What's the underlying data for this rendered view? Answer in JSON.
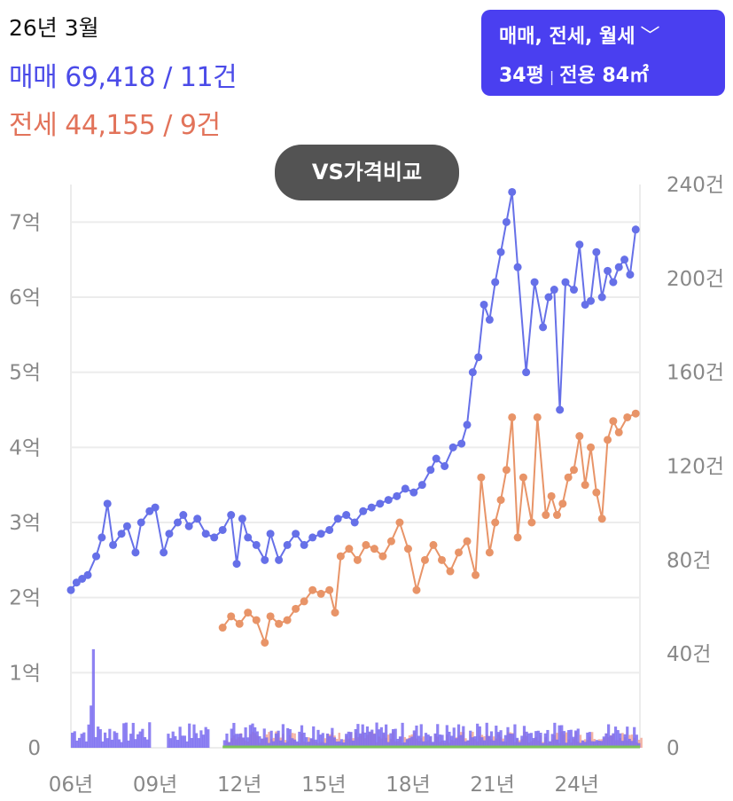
{
  "header": {
    "date": "26년 3월",
    "sale": "매매 69,418 / 11건",
    "jeonse": "전세 44,155 / 9건"
  },
  "filter": {
    "types": "매매, 전세, 월세",
    "size_pyeong": "34평",
    "separator": "|",
    "size_exclusive": "전용 84㎡"
  },
  "vs_button": "VS가격비교",
  "colors": {
    "sale": "#6670e8",
    "jeonse": "#e89468",
    "grid": "#ececec",
    "button": "#4a3ff0"
  },
  "chart_data": {
    "type": "line",
    "y_left": {
      "ticks": [
        "0",
        "1억",
        "2억",
        "3억",
        "4억",
        "5억",
        "6억",
        "7억"
      ],
      "range": [
        0,
        7.5
      ]
    },
    "y_right": {
      "ticks": [
        "0",
        "40건",
        "80건",
        "120건",
        "160건",
        "200건",
        "240건"
      ],
      "range": [
        0,
        240
      ]
    },
    "x_ticks": [
      "06년",
      "09년",
      "12년",
      "15년",
      "18년",
      "21년",
      "24년"
    ],
    "x_range": [
      2006.0,
      2026.25
    ],
    "grid": true,
    "series": [
      {
        "name": "매매",
        "points": [
          [
            2006.0,
            2.1
          ],
          [
            2006.2,
            2.2
          ],
          [
            2006.4,
            2.25
          ],
          [
            2006.6,
            2.3
          ],
          [
            2006.9,
            2.55
          ],
          [
            2007.1,
            2.8
          ],
          [
            2007.3,
            3.25
          ],
          [
            2007.5,
            2.7
          ],
          [
            2007.8,
            2.85
          ],
          [
            2008.0,
            2.95
          ],
          [
            2008.3,
            2.6
          ],
          [
            2008.5,
            3.0
          ],
          [
            2008.8,
            3.15
          ],
          [
            2009.0,
            3.2
          ],
          [
            2009.3,
            2.6
          ],
          [
            2009.5,
            2.85
          ],
          [
            2009.8,
            3.0
          ],
          [
            2010.0,
            3.1
          ],
          [
            2010.2,
            2.95
          ],
          [
            2010.5,
            3.05
          ],
          [
            2010.8,
            2.85
          ],
          [
            2011.1,
            2.8
          ],
          [
            2011.4,
            2.9
          ],
          [
            2011.7,
            3.1
          ],
          [
            2011.9,
            2.45
          ],
          [
            2012.1,
            3.05
          ],
          [
            2012.3,
            2.8
          ],
          [
            2012.6,
            2.7
          ],
          [
            2012.9,
            2.5
          ],
          [
            2013.1,
            2.85
          ],
          [
            2013.4,
            2.5
          ],
          [
            2013.7,
            2.7
          ],
          [
            2014.0,
            2.85
          ],
          [
            2014.3,
            2.7
          ],
          [
            2014.6,
            2.8
          ],
          [
            2014.9,
            2.85
          ],
          [
            2015.2,
            2.9
          ],
          [
            2015.5,
            3.05
          ],
          [
            2015.8,
            3.1
          ],
          [
            2016.1,
            3.0
          ],
          [
            2016.4,
            3.15
          ],
          [
            2016.7,
            3.2
          ],
          [
            2017.0,
            3.25
          ],
          [
            2017.3,
            3.3
          ],
          [
            2017.6,
            3.35
          ],
          [
            2017.9,
            3.45
          ],
          [
            2018.2,
            3.4
          ],
          [
            2018.5,
            3.5
          ],
          [
            2018.8,
            3.7
          ],
          [
            2019.0,
            3.85
          ],
          [
            2019.3,
            3.75
          ],
          [
            2019.6,
            4.0
          ],
          [
            2019.9,
            4.05
          ],
          [
            2020.1,
            4.3
          ],
          [
            2020.3,
            5.0
          ],
          [
            2020.5,
            5.2
          ],
          [
            2020.7,
            5.9
          ],
          [
            2020.9,
            5.7
          ],
          [
            2021.1,
            6.2
          ],
          [
            2021.3,
            6.6
          ],
          [
            2021.5,
            7.0
          ],
          [
            2021.7,
            7.4
          ],
          [
            2021.9,
            6.4
          ],
          [
            2022.2,
            5.0
          ],
          [
            2022.5,
            6.2
          ],
          [
            2022.8,
            5.6
          ],
          [
            2023.0,
            6.0
          ],
          [
            2023.2,
            6.1
          ],
          [
            2023.4,
            4.5
          ],
          [
            2023.6,
            6.2
          ],
          [
            2023.9,
            6.1
          ],
          [
            2024.1,
            6.7
          ],
          [
            2024.3,
            5.9
          ],
          [
            2024.5,
            5.95
          ],
          [
            2024.7,
            6.6
          ],
          [
            2024.9,
            6.0
          ],
          [
            2025.1,
            6.35
          ],
          [
            2025.3,
            6.2
          ],
          [
            2025.5,
            6.4
          ],
          [
            2025.7,
            6.5
          ],
          [
            2025.9,
            6.3
          ],
          [
            2026.1,
            6.9
          ]
        ]
      },
      {
        "name": "전세",
        "points": [
          [
            2011.4,
            1.6
          ],
          [
            2011.7,
            1.75
          ],
          [
            2012.0,
            1.65
          ],
          [
            2012.3,
            1.8
          ],
          [
            2012.6,
            1.7
          ],
          [
            2012.9,
            1.4
          ],
          [
            2013.1,
            1.75
          ],
          [
            2013.4,
            1.65
          ],
          [
            2013.7,
            1.7
          ],
          [
            2014.0,
            1.85
          ],
          [
            2014.3,
            1.95
          ],
          [
            2014.6,
            2.1
          ],
          [
            2014.9,
            2.05
          ],
          [
            2015.2,
            2.1
          ],
          [
            2015.4,
            1.8
          ],
          [
            2015.6,
            2.55
          ],
          [
            2015.9,
            2.65
          ],
          [
            2016.2,
            2.5
          ],
          [
            2016.5,
            2.7
          ],
          [
            2016.8,
            2.65
          ],
          [
            2017.1,
            2.55
          ],
          [
            2017.4,
            2.75
          ],
          [
            2017.7,
            3.0
          ],
          [
            2018.0,
            2.65
          ],
          [
            2018.3,
            2.1
          ],
          [
            2018.6,
            2.5
          ],
          [
            2018.9,
            2.7
          ],
          [
            2019.2,
            2.5
          ],
          [
            2019.5,
            2.35
          ],
          [
            2019.8,
            2.6
          ],
          [
            2020.1,
            2.75
          ],
          [
            2020.4,
            2.3
          ],
          [
            2020.6,
            3.6
          ],
          [
            2020.9,
            2.6
          ],
          [
            2021.1,
            3.0
          ],
          [
            2021.3,
            3.3
          ],
          [
            2021.5,
            3.7
          ],
          [
            2021.7,
            4.4
          ],
          [
            2021.9,
            2.8
          ],
          [
            2022.1,
            3.6
          ],
          [
            2022.4,
            3.0
          ],
          [
            2022.6,
            4.4
          ],
          [
            2022.9,
            3.1
          ],
          [
            2023.1,
            3.35
          ],
          [
            2023.3,
            3.1
          ],
          [
            2023.5,
            3.25
          ],
          [
            2023.7,
            3.6
          ],
          [
            2023.9,
            3.7
          ],
          [
            2024.1,
            4.15
          ],
          [
            2024.3,
            3.5
          ],
          [
            2024.5,
            4.0
          ],
          [
            2024.7,
            3.4
          ],
          [
            2024.9,
            3.05
          ],
          [
            2025.1,
            4.1
          ],
          [
            2025.3,
            4.35
          ],
          [
            2025.5,
            4.2
          ],
          [
            2025.8,
            4.4
          ],
          [
            2026.1,
            4.45
          ]
        ]
      }
    ]
  }
}
